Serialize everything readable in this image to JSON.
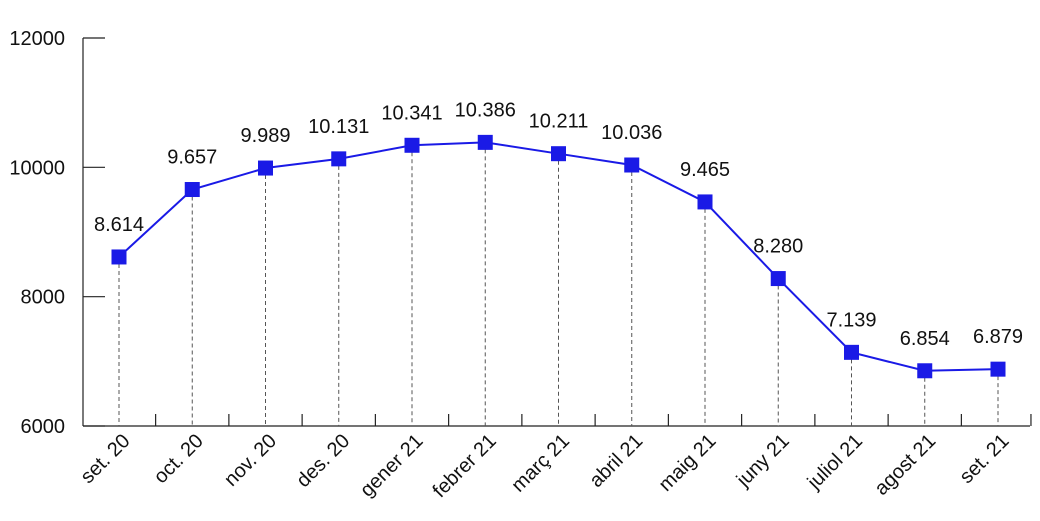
{
  "chart_data": {
    "type": "line",
    "categories": [
      "set. 20",
      "oct. 20",
      "nov. 20",
      "des. 20",
      "gener 21",
      "febrer 21",
      "març 21",
      "abril 21",
      "maig 21",
      "juny 21",
      "juliol 21",
      "agost 21",
      "set. 21"
    ],
    "values": [
      8614,
      9657,
      9989,
      10131,
      10341,
      10386,
      10211,
      10036,
      9465,
      8280,
      7139,
      6854,
      6879
    ],
    "data_labels": [
      "8.614",
      "9.657",
      "9.989",
      "10.131",
      "10.341",
      "10.386",
      "10.211",
      "10.036",
      "9.465",
      "8.280",
      "7.139",
      "6.854",
      "6.879"
    ],
    "y_ticks": [
      6000,
      8000,
      10000,
      12000
    ],
    "y_tick_labels": [
      "6000",
      "8000",
      "10000",
      "12000"
    ],
    "ylim": [
      6000,
      12000
    ],
    "title": "",
    "xlabel": "",
    "ylabel": "",
    "line_color": "#1a1ae6",
    "marker_color": "#1a1ae6",
    "grid": false,
    "drop_lines": true
  }
}
